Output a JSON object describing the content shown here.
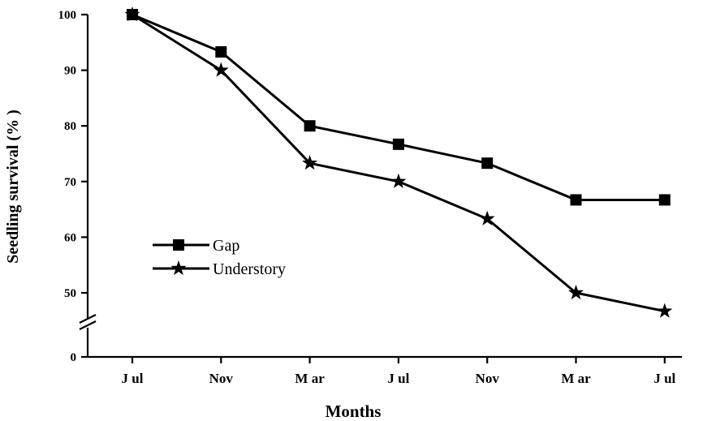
{
  "chart_data": {
    "type": "line",
    "xlabel": "Months",
    "ylabel": "Seedling survival (% )",
    "categories": [
      "J ul",
      "Nov",
      "M ar",
      "J ul",
      "Nov",
      "M ar",
      "J ul"
    ],
    "yticks": [
      0,
      50,
      60,
      70,
      80,
      90,
      100
    ],
    "ytick_labels": [
      "0",
      "50",
      "60",
      "70",
      "80",
      "90",
      "100"
    ],
    "ylim": [
      0,
      100
    ],
    "axis_break": true,
    "grid": false,
    "legend_position": "left",
    "series": [
      {
        "name": "Gap",
        "marker": "square",
        "color": "#000000",
        "values": [
          100,
          93.3,
          80,
          76.7,
          73.3,
          66.7,
          66.7
        ]
      },
      {
        "name": "Understory",
        "marker": "star",
        "color": "#000000",
        "values": [
          100,
          90,
          73.3,
          70,
          63.3,
          50,
          46.7
        ]
      }
    ]
  }
}
